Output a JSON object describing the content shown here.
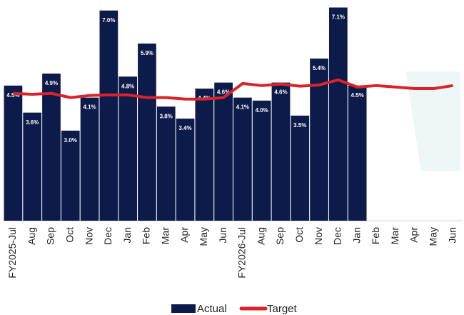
{
  "chart_data": {
    "type": "bar_line",
    "categories": [
      "FY2025-Jul",
      "Aug",
      "Sep",
      "Oct",
      "Nov",
      "Dec",
      "Jan",
      "Feb",
      "Mar",
      "Apr",
      "May",
      "Jun",
      "FY2026-Jul",
      "Aug",
      "Sep",
      "Oct",
      "Nov",
      "Dec",
      "Jan",
      "Feb",
      "Mar",
      "Apr",
      "May",
      "Jun"
    ],
    "series": [
      {
        "name": "Actual",
        "color": "#0d1b4b",
        "type": "bar",
        "values": [
          4.5,
          3.6,
          4.9,
          3.0,
          4.1,
          7.0,
          4.8,
          5.9,
          3.8,
          3.4,
          4.4,
          4.6,
          4.1,
          4.0,
          4.6,
          3.5,
          5.4,
          7.1,
          4.5,
          null,
          null,
          null,
          null,
          null
        ],
        "value_labels": [
          "4.5%",
          "3.6%",
          "4.9%",
          "3.0%",
          "4.1%",
          "7.0%",
          "4.8%",
          "5.9%",
          "3.8%",
          "3.4%",
          "4.4%",
          "4.6%",
          "4.1%",
          "4.0%",
          "4.6%",
          "3.5%",
          "5.4%",
          "7.1%",
          "4.5%",
          null,
          null,
          null,
          null,
          null
        ]
      },
      {
        "name": "Target",
        "color": "#d8232a",
        "type": "line",
        "values": [
          4.24,
          4.21,
          4.24,
          4.1,
          4.17,
          4.19,
          4.19,
          4.1,
          4.1,
          4.05,
          4.05,
          4.1,
          4.57,
          4.5,
          4.55,
          4.48,
          4.52,
          4.69,
          4.45,
          4.5,
          4.45,
          4.4,
          4.4,
          4.5
        ]
      }
    ],
    "ylim": [
      0,
      7.35
    ],
    "legend": "bottom"
  }
}
